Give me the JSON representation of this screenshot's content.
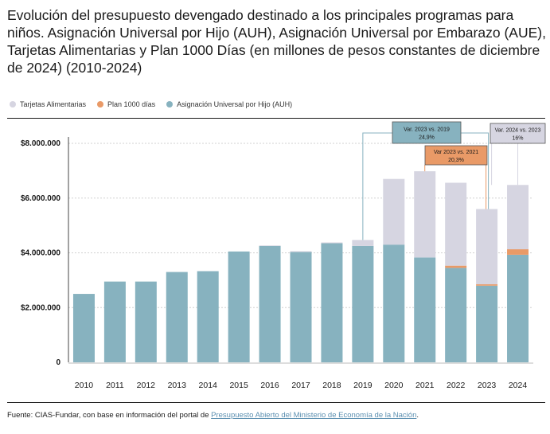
{
  "title": "Evolución del presupuesto devengado destinado a los principales programas para niños. Asignación Universal por Hijo (AUH), Asignación Universal por Embarazo (AUE), Tarjetas Alimentarias y Plan 1000 Días (en millones de pesos constantes de diciembre de 2024) (2010-2024)",
  "source": {
    "prefix": "Fuente: CIAS-Fundar, con base en información del portal de ",
    "link": "Presupuesto Abierto del Ministerio de Economía de la Nación",
    "suffix": "."
  },
  "colors": {
    "tarjetas": "#d6d5e1",
    "plan1000": "#e99a67",
    "auh": "#87b2bf",
    "ann_auh": "#87b2bf",
    "ann_plan": "#e99a67",
    "ann_tarjetas": "#d6d5e1"
  },
  "chart_data": {
    "type": "bar",
    "stacked": true,
    "categories": [
      "2010",
      "2011",
      "2012",
      "2013",
      "2014",
      "2015",
      "2016",
      "2017",
      "2018",
      "2019",
      "2020",
      "2021",
      "2022",
      "2023",
      "2024"
    ],
    "series": [
      {
        "name": "Asignación Universal por Hijo (AUH)",
        "color_key": "auh",
        "values": [
          2500000,
          2950000,
          2950000,
          3300000,
          3330000,
          4050000,
          4250000,
          4030000,
          4350000,
          4250000,
          4300000,
          3830000,
          3450000,
          2800000,
          3930000
        ]
      },
      {
        "name": "Plan 1000 días",
        "color_key": "plan1000",
        "values": [
          0,
          0,
          0,
          0,
          0,
          0,
          0,
          0,
          0,
          0,
          0,
          0,
          80000,
          50000,
          200000
        ]
      },
      {
        "name": "Tarjetas Alimentarias",
        "color_key": "tarjetas",
        "values": [
          0,
          0,
          0,
          0,
          0,
          0,
          20000,
          30000,
          30000,
          220000,
          2400000,
          3150000,
          3030000,
          2750000,
          2350000
        ]
      }
    ],
    "legend_order": [
      "Tarjetas Alimentarias",
      "Plan 1000 días",
      "Asignación Universal por Hijo (AUH)"
    ],
    "yticks": [
      {
        "value": 0,
        "label": "0"
      },
      {
        "value": 2000000,
        "label": "$2.000.000"
      },
      {
        "value": 4000000,
        "label": "$4.000.000"
      },
      {
        "value": 6000000,
        "label": "$6.000.000"
      },
      {
        "value": 8000000,
        "label": "$8.000.000"
      }
    ],
    "ylim": [
      0,
      8300000
    ],
    "grid": true,
    "legend_position": "top-left",
    "annotations": [
      {
        "line1": "Var. 2023 vs. 2019",
        "line2": "24,9%",
        "color_key": "ann_auh",
        "from": "2019",
        "to": "2023"
      },
      {
        "line1": "Var 2023 vs. 2021",
        "line2": "20,3%",
        "color_key": "ann_plan",
        "from": "2021",
        "to": "2023"
      },
      {
        "line1": "Var. 2024 vs. 2023",
        "line2": "16%",
        "color_key": "ann_tarjetas",
        "from": "2023",
        "to": "2024"
      }
    ]
  }
}
